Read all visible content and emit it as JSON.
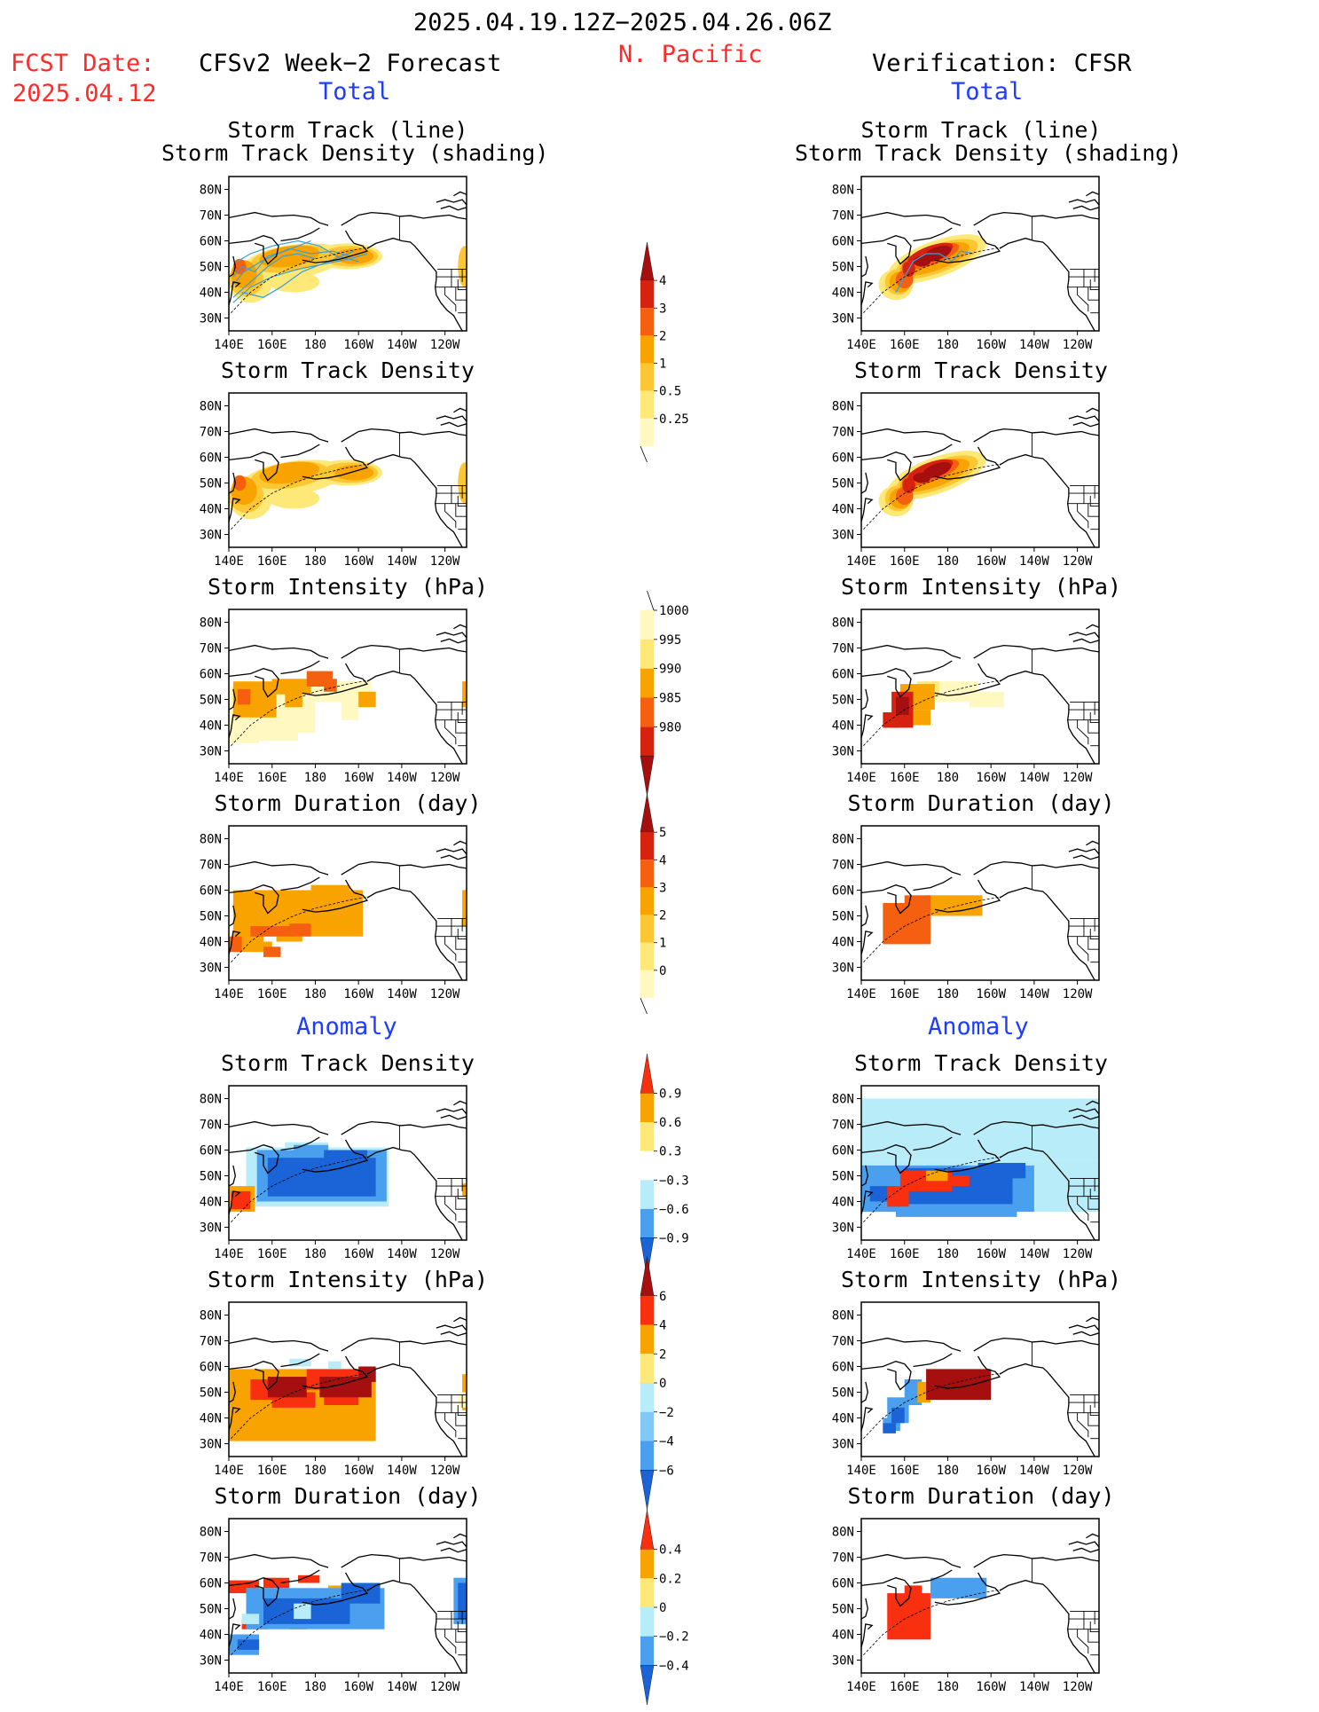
{
  "header": {
    "period": "2025.04.19.12Z−2025.04.26.06Z",
    "region": "N. Pacific",
    "fcst_date_label": "FCST Date:",
    "fcst_date_value": "2025.04.12",
    "left_title": "CFSv2 Week−2 Forecast",
    "right_title": "Verification: CFSR"
  },
  "sections": {
    "total": "Total",
    "anomaly": "Anomaly"
  },
  "panel_titles": {
    "track_line": "Storm Track (line)",
    "track_shading": "Storm Track Density (shading)",
    "density": "Storm Track Density",
    "intensity": "Storm Intensity (hPa)",
    "duration": "Storm Duration (day)"
  },
  "axis": {
    "lat_ticks": [
      "80N",
      "70N",
      "60N",
      "50N",
      "40N",
      "30N"
    ],
    "lon_ticks": [
      "140E",
      "160E",
      "180",
      "160W",
      "140W",
      "120W"
    ]
  },
  "colorbars": {
    "density_total": {
      "labels": [
        "4",
        "3",
        "2",
        "1",
        "0.5",
        "0.25"
      ],
      "colors": [
        "#a50f0f",
        "#d72210",
        "#f4600f",
        "#f9a300",
        "#fcc733",
        "#fde878",
        "#fff8c0"
      ]
    },
    "intensity_total": {
      "labels": [
        "1000",
        "995",
        "990",
        "985",
        "980"
      ],
      "colors": [
        "#fff8c0",
        "#fde878",
        "#f9a300",
        "#f4600f",
        "#d72210",
        "#a50f0f"
      ]
    },
    "duration_total": {
      "labels": [
        "5",
        "4",
        "3",
        "2",
        "1",
        "0"
      ],
      "colors": [
        "#a50f0f",
        "#d72210",
        "#f4600f",
        "#f9a300",
        "#fcc733",
        "#fde878",
        "#fff8c0"
      ]
    },
    "density_anom": {
      "labels": [
        "0.9",
        "0.6",
        "0.3",
        "−0.3",
        "−0.6",
        "−0.9"
      ],
      "colors": [
        "#f9300f",
        "#f9a300",
        "#fde878",
        "#ffffff",
        "#b8ecf8",
        "#4aa0ee",
        "#1a64d8"
      ]
    },
    "intensity_anom": {
      "labels": [
        "6",
        "4",
        "2",
        "0",
        "−2",
        "−4",
        "−6"
      ],
      "colors": [
        "#a50f0f",
        "#f9300f",
        "#f9a300",
        "#fde878",
        "#b8ecf8",
        "#82c8f4",
        "#4aa0ee",
        "#1a64d8"
      ]
    },
    "duration_anom": {
      "labels": [
        "0.4",
        "0.2",
        "0",
        "−0.2",
        "−0.4"
      ],
      "colors": [
        "#f9300f",
        "#f9a300",
        "#fde878",
        "#b8ecf8",
        "#4aa0ee",
        "#1a64d8"
      ]
    }
  }
}
